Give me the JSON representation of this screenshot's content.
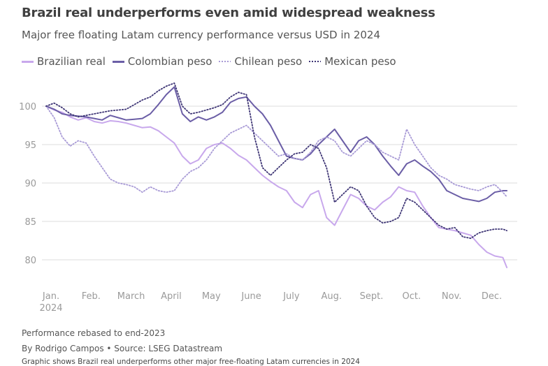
{
  "title": "Brazil real underperforms even amid widespread weakness",
  "subtitle": "Major free floating Latam currency performance versus USD in 2024",
  "legend": [
    {
      "label": "Brazilian real",
      "color": "#c8a8ec",
      "style": "solid"
    },
    {
      "label": "Colombian peso",
      "color": "#6b5ea6",
      "style": "solid"
    },
    {
      "label": "Chilean peso",
      "color": "#a89ad6",
      "style": "dotted"
    },
    {
      "label": "Mexican peso",
      "color": "#3e3575",
      "style": "dotted"
    }
  ],
  "footer": {
    "note": "Performance rebased to end-2023",
    "byline": "By Rodrigo Campos • Source: LSEG Datastream",
    "caption": "Graphic shows Brazil real underperforms other major free-floating Latam currencies in 2024"
  },
  "chart_data": {
    "type": "line",
    "x_labels": [
      "Jan.",
      "Feb.",
      "March",
      "April",
      "May",
      "June",
      "July",
      "Aug.",
      "Sept.",
      "Oct.",
      "Nov.",
      "Dec."
    ],
    "x_sublabel": "2024",
    "x_label_months": [
      0,
      1,
      2,
      3,
      4,
      5,
      6,
      7,
      8,
      9,
      10,
      11
    ],
    "xlim": [
      0,
      11.55
    ],
    "ylim": [
      78,
      104
    ],
    "yticks": [
      80,
      85,
      90,
      95,
      100
    ],
    "grid": true,
    "legend_position": "top-left",
    "series": [
      {
        "name": "Brazilian real",
        "color": "#c8a8ec",
        "style": "solid",
        "x": [
          0,
          0.2,
          0.4,
          0.6,
          0.8,
          1.0,
          1.2,
          1.4,
          1.6,
          1.8,
          2.0,
          2.2,
          2.4,
          2.6,
          2.8,
          3.0,
          3.2,
          3.4,
          3.6,
          3.8,
          4.0,
          4.2,
          4.4,
          4.6,
          4.8,
          5.0,
          5.2,
          5.4,
          5.6,
          5.8,
          6.0,
          6.2,
          6.4,
          6.6,
          6.8,
          7.0,
          7.2,
          7.4,
          7.6,
          7.8,
          8.0,
          8.2,
          8.4,
          8.6,
          8.8,
          9.0,
          9.2,
          9.4,
          9.6,
          9.8,
          10.0,
          10.2,
          10.4,
          10.6,
          10.8,
          11.0,
          11.2,
          11.4,
          11.5
        ],
        "y": [
          100,
          99.5,
          99.2,
          98.6,
          98.2,
          98.5,
          98.0,
          97.8,
          98.1,
          98.0,
          97.8,
          97.5,
          97.2,
          97.3,
          96.8,
          96.0,
          95.2,
          93.5,
          92.5,
          93.0,
          94.5,
          95.0,
          95.2,
          94.5,
          93.6,
          93.0,
          92.0,
          91.0,
          90.2,
          89.5,
          89.0,
          87.5,
          86.8,
          88.5,
          89.0,
          85.5,
          84.5,
          86.5,
          88.5,
          88.0,
          87.0,
          86.5,
          87.5,
          88.2,
          89.5,
          89.0,
          88.8,
          87.0,
          85.5,
          84.2,
          84.0,
          83.8,
          83.5,
          83.2,
          82.0,
          81.0,
          80.5,
          80.3,
          79.0
        ]
      },
      {
        "name": "Colombian peso",
        "color": "#6b5ea6",
        "style": "solid",
        "x": [
          0,
          0.2,
          0.4,
          0.6,
          0.8,
          1.0,
          1.2,
          1.4,
          1.6,
          1.8,
          2.0,
          2.2,
          2.4,
          2.6,
          2.8,
          3.0,
          3.2,
          3.4,
          3.6,
          3.8,
          4.0,
          4.2,
          4.4,
          4.6,
          4.8,
          5.0,
          5.2,
          5.4,
          5.6,
          5.8,
          6.0,
          6.2,
          6.4,
          6.6,
          6.8,
          7.0,
          7.2,
          7.4,
          7.6,
          7.8,
          8.0,
          8.2,
          8.4,
          8.6,
          8.8,
          9.0,
          9.2,
          9.4,
          9.6,
          9.8,
          10.0,
          10.2,
          10.4,
          10.6,
          10.8,
          11.0,
          11.2,
          11.4,
          11.5
        ],
        "y": [
          100,
          99.6,
          99.0,
          98.8,
          98.7,
          98.6,
          98.4,
          98.2,
          98.8,
          98.5,
          98.2,
          98.3,
          98.4,
          99.0,
          100.2,
          101.5,
          102.5,
          99.0,
          98.0,
          98.6,
          98.2,
          98.6,
          99.2,
          100.5,
          101.0,
          101.2,
          100.0,
          99.0,
          97.5,
          95.5,
          93.5,
          93.2,
          93.0,
          93.8,
          95.0,
          96.0,
          97.0,
          95.5,
          94.0,
          95.5,
          96.0,
          95.0,
          93.5,
          92.2,
          91.0,
          92.5,
          93.0,
          92.2,
          91.5,
          90.5,
          89.0,
          88.5,
          88.0,
          87.8,
          87.6,
          88.0,
          88.8,
          89.0,
          89.0
        ]
      },
      {
        "name": "Chilean peso",
        "color": "#a89ad6",
        "style": "dotted",
        "x": [
          0,
          0.2,
          0.4,
          0.6,
          0.8,
          1.0,
          1.2,
          1.4,
          1.6,
          1.8,
          2.0,
          2.2,
          2.4,
          2.6,
          2.8,
          3.0,
          3.2,
          3.4,
          3.6,
          3.8,
          4.0,
          4.2,
          4.4,
          4.6,
          4.8,
          5.0,
          5.2,
          5.4,
          5.6,
          5.8,
          6.0,
          6.2,
          6.4,
          6.6,
          6.8,
          7.0,
          7.2,
          7.4,
          7.6,
          7.8,
          8.0,
          8.2,
          8.4,
          8.6,
          8.8,
          9.0,
          9.2,
          9.4,
          9.6,
          9.8,
          10.0,
          10.2,
          10.4,
          10.6,
          10.8,
          11.0,
          11.2,
          11.4,
          11.5
        ],
        "y": [
          100,
          98.5,
          96.0,
          94.8,
          95.5,
          95.2,
          93.5,
          92.0,
          90.5,
          90.0,
          89.8,
          89.5,
          88.8,
          89.5,
          89.0,
          88.8,
          89.0,
          90.5,
          91.5,
          92.0,
          93.0,
          94.5,
          95.5,
          96.5,
          97.0,
          97.5,
          96.5,
          95.5,
          94.5,
          93.5,
          93.8,
          93.2,
          93.0,
          94.0,
          95.5,
          96.0,
          95.5,
          94.0,
          93.5,
          94.5,
          95.5,
          95.0,
          94.0,
          93.5,
          93.0,
          97.0,
          95.0,
          93.5,
          92.0,
          91.0,
          90.5,
          89.8,
          89.5,
          89.2,
          89.0,
          89.5,
          89.8,
          88.8,
          88.2
        ]
      },
      {
        "name": "Mexican peso",
        "color": "#3e3575",
        "style": "dotted",
        "x": [
          0,
          0.2,
          0.4,
          0.6,
          0.8,
          1.0,
          1.2,
          1.4,
          1.6,
          1.8,
          2.0,
          2.2,
          2.4,
          2.6,
          2.8,
          3.0,
          3.2,
          3.4,
          3.6,
          3.8,
          4.0,
          4.2,
          4.4,
          4.6,
          4.8,
          5.0,
          5.2,
          5.4,
          5.6,
          5.8,
          6.0,
          6.2,
          6.4,
          6.6,
          6.8,
          7.0,
          7.2,
          7.4,
          7.6,
          7.8,
          8.0,
          8.2,
          8.4,
          8.6,
          8.8,
          9.0,
          9.2,
          9.4,
          9.6,
          9.8,
          10.0,
          10.2,
          10.4,
          10.6,
          10.8,
          11.0,
          11.2,
          11.4,
          11.5
        ],
        "y": [
          100,
          100.4,
          99.8,
          99.0,
          98.6,
          98.8,
          99.0,
          99.2,
          99.4,
          99.5,
          99.6,
          100.2,
          100.8,
          101.2,
          102.0,
          102.6,
          103.0,
          100.0,
          99.0,
          99.2,
          99.5,
          99.8,
          100.2,
          101.2,
          101.8,
          101.5,
          96.0,
          92.0,
          91.0,
          92.0,
          93.0,
          93.8,
          94.0,
          95.0,
          94.5,
          92.0,
          87.5,
          88.5,
          89.5,
          89.0,
          87.0,
          85.5,
          84.8,
          85.0,
          85.5,
          88.0,
          87.5,
          86.5,
          85.5,
          84.5,
          84.0,
          84.2,
          83.0,
          82.8,
          83.5,
          83.8,
          84.0,
          84.0,
          83.8
        ]
      }
    ]
  }
}
